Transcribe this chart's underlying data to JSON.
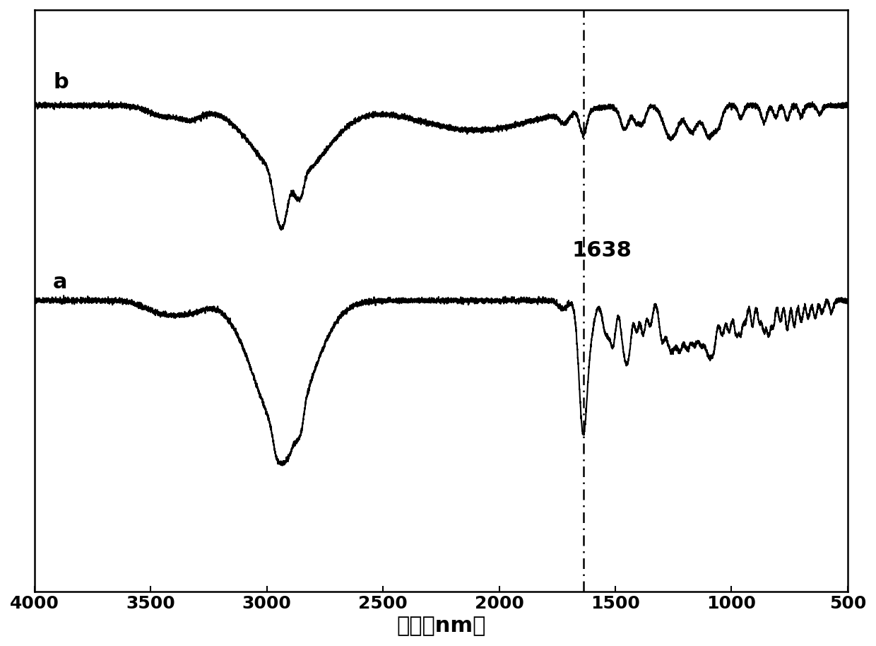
{
  "title": "",
  "xlabel": "波数（nm）",
  "ylabel": "",
  "xmin": 500,
  "xmax": 4000,
  "xticks": [
    500,
    1000,
    1500,
    2000,
    2500,
    3000,
    3500,
    4000
  ],
  "dashed_line_x": 1638,
  "dashed_line_label": "1638",
  "label_a": "a",
  "label_b": "b",
  "line_color": "#000000",
  "background_color": "#ffffff",
  "xlabel_fontsize": 22,
  "label_fontsize": 22,
  "annotation_fontsize": 22,
  "tick_fontsize": 18,
  "baseline_b": 0.82,
  "baseline_a": 0.35,
  "b_scale": 0.18,
  "a_scale": 0.35
}
